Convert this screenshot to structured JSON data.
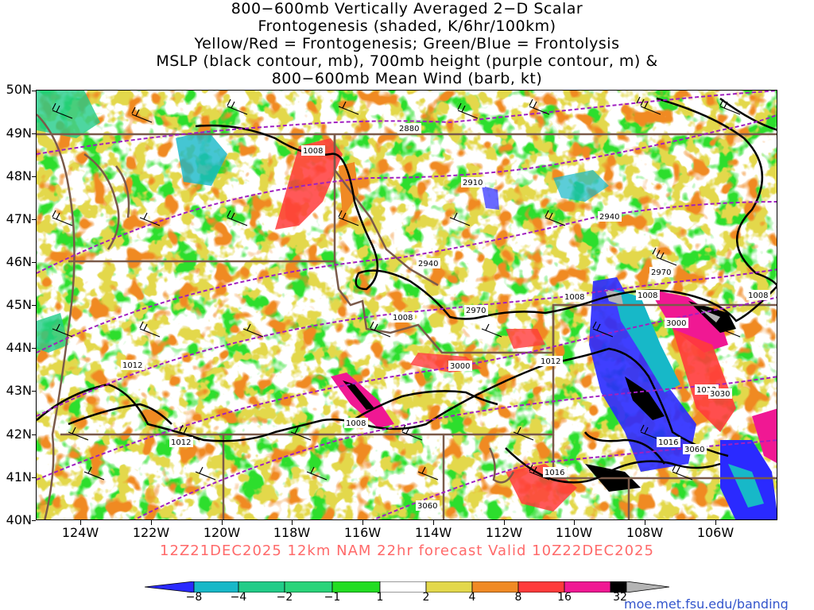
{
  "title": {
    "line1": "800−600mb Vertically Averaged 2−D Scalar",
    "line2": "Frontogenesis (shaded, K/6hr/100km)",
    "line3": "Yellow/Red = Frontogenesis;  Green/Blue = Frontolysis",
    "line4": "MSLP (black contour, mb), 700mb height (purple contour, m) &",
    "line5": "800−600mb Mean Wind (barb, kt)"
  },
  "footer": "12Z21DEC2025 12km NAM 22hr forecast Valid 10Z22DEC2025",
  "credit": "moe.met.fsu.edu/banding",
  "axes": {
    "lat_labels": [
      "50N",
      "49N",
      "48N",
      "47N",
      "46N",
      "45N",
      "44N",
      "43N",
      "42N",
      "41N",
      "40N"
    ],
    "lon_labels": [
      "124W",
      "122W",
      "120W",
      "118W",
      "116W",
      "114W",
      "112W",
      "110W",
      "108W",
      "106W"
    ]
  },
  "colorbar": {
    "labels": [
      "−8",
      "−4",
      "−2",
      "−1",
      "1",
      "2",
      "4",
      "8",
      "16",
      "32"
    ],
    "colors": [
      "#2a2aff",
      "#17b8c8",
      "#22cc88",
      "#2ad47a",
      "#22dd22",
      "#ffffff",
      "#e3d84b",
      "#f08a24",
      "#ff3b3b",
      "#f01893",
      "#000000",
      "#b4b4b4"
    ]
  },
  "contours": {
    "mslp_labels": [
      "1008",
      "1008",
      "1008",
      "1008",
      "1008",
      "1012",
      "1012",
      "1012",
      "1012",
      "1016",
      "1016",
      "1008"
    ],
    "height_labels": [
      "2880",
      "2910",
      "2940",
      "2940",
      "2970",
      "2970",
      "3000",
      "3000",
      "3030",
      "3060",
      "3060"
    ]
  },
  "colors": {
    "mslp": "#000000",
    "height": "#a020c0",
    "borders": "#7a5a4a",
    "footer": "#ff6a6a",
    "credit": "#3355cc"
  }
}
